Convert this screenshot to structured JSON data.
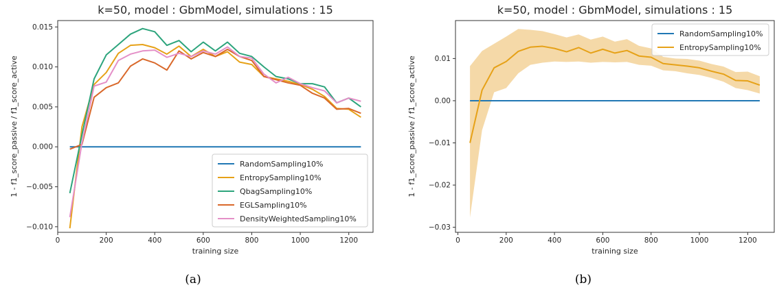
{
  "panels": [
    {
      "caption": "(a)"
    },
    {
      "caption": "(b)"
    }
  ],
  "chart_data": [
    {
      "type": "line",
      "title": "k=50, model : GbmModel, simulations : 15",
      "xlabel": "training size",
      "ylabel": "1 - f1_score_passive / f1_score_active",
      "xlim": [
        0,
        1300
      ],
      "ylim": [
        -0.0107,
        0.0158
      ],
      "xticks": [
        0,
        200,
        400,
        600,
        800,
        1000,
        1200
      ],
      "yticks": [
        -0.01,
        -0.005,
        0.0,
        0.005,
        0.01,
        0.015
      ],
      "ytick_labels": [
        "−0.010",
        "−0.005",
        "0.000",
        "0.005",
        "0.010",
        "0.015"
      ],
      "xtick_labels": [
        "0",
        "200",
        "400",
        "600",
        "800",
        "1000",
        "1200"
      ],
      "grid": false,
      "legend_position": "lower-right",
      "x": [
        50,
        100,
        150,
        200,
        250,
        300,
        350,
        400,
        450,
        500,
        550,
        600,
        650,
        700,
        750,
        800,
        850,
        900,
        950,
        1000,
        1050,
        1100,
        1150,
        1200,
        1250
      ],
      "series": [
        {
          "name": "RandomSampling10%",
          "color": "#1f77b4",
          "values": [
            0,
            0,
            0,
            0,
            0,
            0,
            0,
            0,
            0,
            0,
            0,
            0,
            0,
            0,
            0,
            0,
            0,
            0,
            0,
            0,
            0,
            0,
            0,
            0,
            0
          ]
        },
        {
          "name": "EntropySampling10%",
          "color": "#e6a117",
          "values": [
            -0.0102,
            0.0025,
            0.0078,
            0.0093,
            0.0117,
            0.0127,
            0.0128,
            0.0124,
            0.0116,
            0.0126,
            0.0113,
            0.0122,
            0.0113,
            0.0119,
            0.0106,
            0.0103,
            0.0088,
            0.0085,
            0.0082,
            0.0078,
            0.0072,
            0.0063,
            0.0048,
            0.0047,
            0.0037
          ]
        },
        {
          "name": "QbagSampling10%",
          "color": "#2ca47c",
          "values": [
            -0.0058,
            0.0015,
            0.0085,
            0.0115,
            0.0128,
            0.0141,
            0.0148,
            0.0144,
            0.0127,
            0.0133,
            0.0119,
            0.0131,
            0.012,
            0.0131,
            0.0117,
            0.0113,
            0.01,
            0.0088,
            0.0085,
            0.0079,
            0.0079,
            0.0075,
            0.0055,
            0.0061,
            0.005
          ]
        },
        {
          "name": "EGLSampling10%",
          "color": "#d9682a",
          "values": [
            -0.0003,
            0.0003,
            0.0062,
            0.0074,
            0.008,
            0.0101,
            0.011,
            0.0105,
            0.0096,
            0.012,
            0.011,
            0.0118,
            0.0113,
            0.0122,
            0.0113,
            0.0108,
            0.0088,
            0.0084,
            0.008,
            0.0077,
            0.0067,
            0.0061,
            0.0047,
            0.0048,
            0.0042
          ]
        },
        {
          "name": "DensityWeightedSampling10%",
          "color": "#e48fc7",
          "values": [
            -0.0088,
            0.0005,
            0.0076,
            0.0081,
            0.0108,
            0.0116,
            0.012,
            0.0121,
            0.0112,
            0.0117,
            0.0113,
            0.012,
            0.0116,
            0.0125,
            0.0113,
            0.0111,
            0.0091,
            0.008,
            0.0087,
            0.0079,
            0.0074,
            0.007,
            0.0055,
            0.0061,
            0.0057
          ]
        }
      ]
    },
    {
      "type": "line",
      "title": "k=50, model : GbmModel, simulations : 15",
      "xlabel": "training size",
      "ylabel": "1 - f1_score_passive / f1_score_active",
      "xlim": [
        -10,
        1310
      ],
      "ylim": [
        -0.0312,
        0.019
      ],
      "xticks": [
        0,
        200,
        400,
        600,
        800,
        1000,
        1200
      ],
      "yticks": [
        -0.03,
        -0.02,
        -0.01,
        0.0,
        0.01
      ],
      "ytick_labels": [
        "−0.03",
        "−0.02",
        "−0.01",
        "0.00",
        "0.01"
      ],
      "xtick_labels": [
        "0",
        "200",
        "400",
        "600",
        "800",
        "1000",
        "1200"
      ],
      "grid": false,
      "legend_position": "top-right",
      "x": [
        50,
        100,
        150,
        200,
        250,
        300,
        350,
        400,
        450,
        500,
        550,
        600,
        650,
        700,
        750,
        800,
        850,
        900,
        950,
        1000,
        1050,
        1100,
        1150,
        1200,
        1250
      ],
      "series": [
        {
          "name": "RandomSampling10%",
          "color": "#1f77b4",
          "values": [
            0,
            0,
            0,
            0,
            0,
            0,
            0,
            0,
            0,
            0,
            0,
            0,
            0,
            0,
            0,
            0,
            0,
            0,
            0,
            0,
            0,
            0,
            0,
            0,
            0
          ]
        },
        {
          "name": "EntropySampling10%",
          "color": "#e6a117",
          "band_color": "#f5d9a8",
          "values": [
            -0.01,
            0.0025,
            0.0078,
            0.0093,
            0.0117,
            0.0127,
            0.0129,
            0.0124,
            0.0116,
            0.0126,
            0.0113,
            0.0122,
            0.0113,
            0.0119,
            0.0106,
            0.0103,
            0.0088,
            0.0085,
            0.0082,
            0.0078,
            0.007,
            0.0063,
            0.0048,
            0.0047,
            0.0037
          ],
          "lower": [
            -0.0277,
            -0.007,
            0.002,
            0.003,
            0.0065,
            0.0085,
            0.009,
            0.0093,
            0.0092,
            0.0093,
            0.009,
            0.0092,
            0.0091,
            0.0092,
            0.0085,
            0.0083,
            0.0072,
            0.007,
            0.0065,
            0.0061,
            0.0054,
            0.0045,
            0.003,
            0.0025,
            0.0017
          ],
          "upper": [
            0.0082,
            0.0118,
            0.0135,
            0.0152,
            0.017,
            0.0168,
            0.0165,
            0.0158,
            0.015,
            0.0157,
            0.0145,
            0.0152,
            0.014,
            0.0146,
            0.013,
            0.0124,
            0.0104,
            0.01,
            0.0099,
            0.0095,
            0.0087,
            0.0081,
            0.0068,
            0.0069,
            0.0058
          ]
        }
      ]
    }
  ]
}
